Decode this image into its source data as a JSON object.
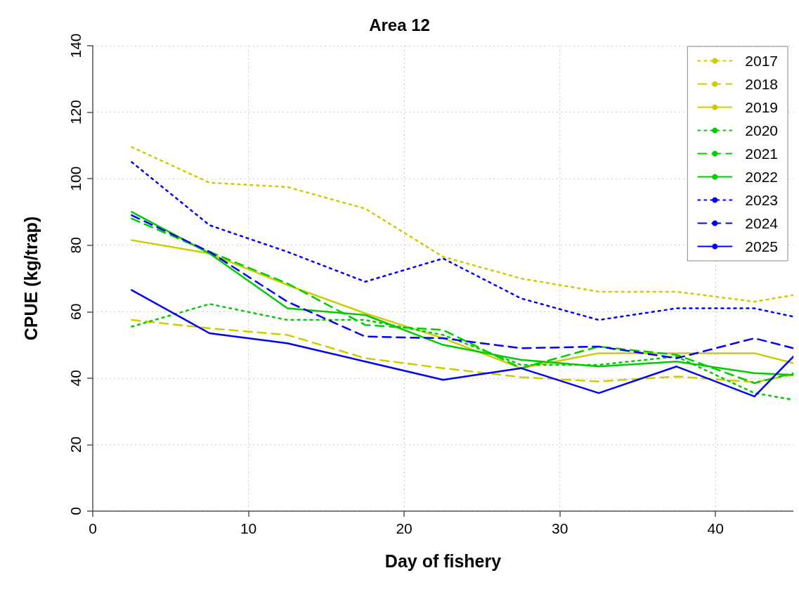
{
  "chart_data": {
    "type": "line",
    "title": "Area 12",
    "xlabel": "Day of fishery",
    "ylabel": "CPUE (kg/trap)",
    "x": [
      2.5,
      7.5,
      12.5,
      17.5,
      22.5,
      27.5,
      32.5,
      37.5,
      42.5,
      45
    ],
    "xlim": [
      0,
      45
    ],
    "xticks": [
      0,
      10,
      20,
      30,
      40
    ],
    "ylim": [
      0,
      140
    ],
    "yticks": [
      0,
      20,
      40,
      60,
      80,
      100,
      120,
      140
    ],
    "grid": true,
    "legend": "top right",
    "marker": "none",
    "series": [
      {
        "name": "2017",
        "color": "#cccc00",
        "line_style": "dotted",
        "values": [
          109.5,
          98.8,
          97.5,
          91,
          76.5,
          70,
          66,
          66,
          63,
          65
        ]
      },
      {
        "name": "2018",
        "color": "#cccc00",
        "line_style": "dashed",
        "values": [
          57.5,
          55,
          53,
          46,
          43,
          40.3,
          39,
          40.5,
          38.8,
          41
        ]
      },
      {
        "name": "2019",
        "color": "#cccc00",
        "line_style": "solid",
        "values": [
          81.5,
          77.5,
          68,
          59.5,
          52,
          43,
          47.5,
          47.5,
          47.5,
          44.5
        ]
      },
      {
        "name": "2020",
        "color": "#00cc00",
        "line_style": "dotted",
        "values": [
          55.5,
          62.3,
          57.5,
          57.5,
          53,
          44,
          44,
          46.5,
          35.5,
          33.5
        ]
      },
      {
        "name": "2021",
        "color": "#00cc00",
        "line_style": "dashed",
        "values": [
          88,
          78,
          68.5,
          56,
          54.5,
          43,
          49.5,
          47,
          38.5,
          41.5
        ]
      },
      {
        "name": "2022",
        "color": "#00cc00",
        "line_style": "solid",
        "values": [
          90,
          77.5,
          61,
          59,
          50,
          45.5,
          43.5,
          45,
          41.5,
          41
        ]
      },
      {
        "name": "2023",
        "color": "#0000ff",
        "line_style": "dotted",
        "values": [
          105,
          86,
          78,
          69,
          76,
          64,
          57.5,
          61,
          61,
          58.5
        ]
      },
      {
        "name": "2024",
        "color": "#0000ff",
        "line_style": "dashed",
        "values": [
          89,
          78,
          63,
          52.5,
          52,
          49,
          49.5,
          46,
          52,
          49
        ]
      },
      {
        "name": "2025",
        "color": "#0000ff",
        "line_style": "solid",
        "values": [
          66.5,
          53.5,
          50.5,
          45,
          39.5,
          43,
          35.5,
          43.5,
          34.5,
          46.5
        ]
      }
    ]
  }
}
